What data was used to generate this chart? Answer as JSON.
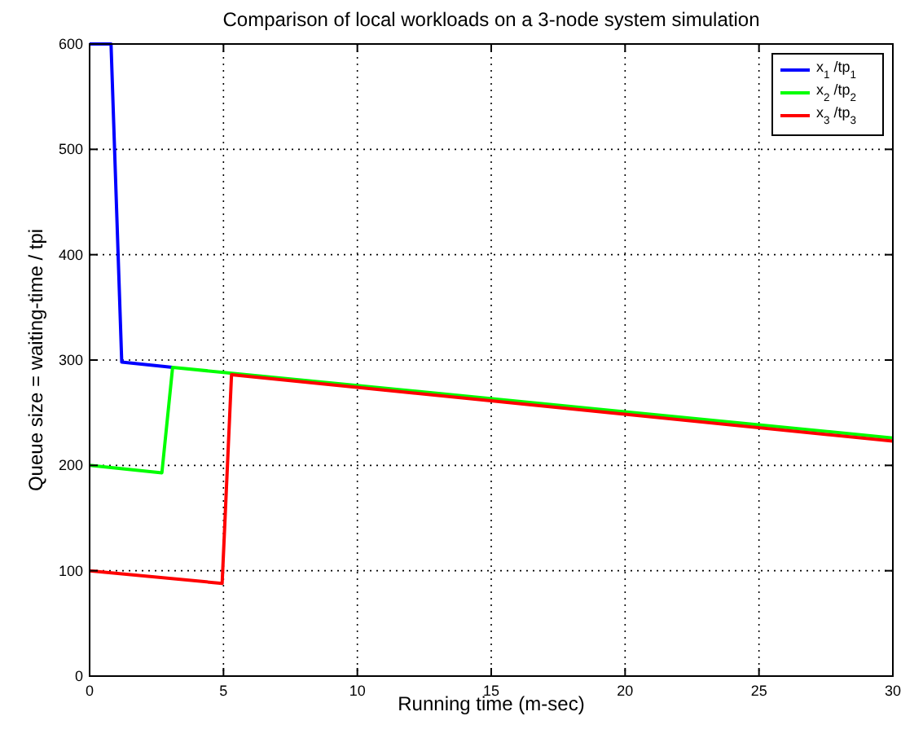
{
  "chart_data": {
    "type": "line",
    "title": "Comparison of local workloads on a 3-node system simulation",
    "xlabel": "Running time (m-sec)",
    "ylabel": "Queue size = waiting-time / tpi",
    "xlim": [
      0,
      30
    ],
    "ylim": [
      0,
      600
    ],
    "xticks": [
      0,
      5,
      10,
      15,
      20,
      25,
      30
    ],
    "yticks": [
      0,
      100,
      200,
      300,
      400,
      500,
      600
    ],
    "grid": true,
    "legend": "top right",
    "marker": "none",
    "line_style": "solid",
    "series": [
      {
        "name": "x$_{1}$ /tp$_{1}$",
        "color": "#0000ff",
        "x": [
          0,
          0.8,
          1.2,
          3.1
        ],
        "values": [
          600,
          600,
          298,
          293
        ]
      },
      {
        "name": "x$_{2}$ /tp$_{2}$",
        "color": "#00ff00",
        "x": [
          0,
          2.7,
          3.1,
          30
        ],
        "values": [
          200,
          193,
          293,
          226
        ]
      },
      {
        "name": "x$_{3}$ /tp$_{3}$",
        "color": "#ff0000",
        "x": [
          0,
          4.95,
          5.3,
          30
        ],
        "values": [
          100,
          88,
          286,
          223
        ]
      }
    ]
  }
}
